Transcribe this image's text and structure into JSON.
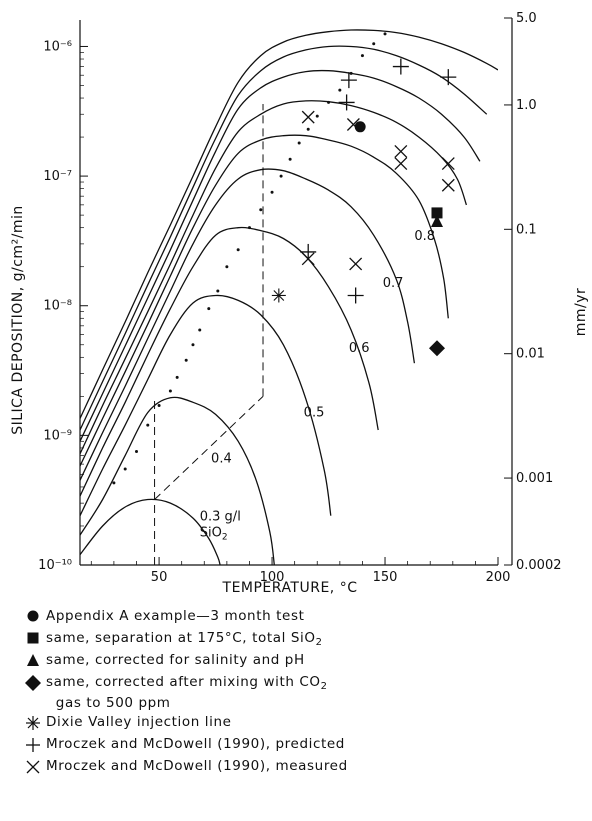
{
  "chart_data": {
    "type": "line",
    "xlabel": "TEMPERATURE, °C",
    "ylabel": "SILICA DEPOSITION, g/cm²/min",
    "y2label": "mm/yr",
    "x_ticks": [
      "50",
      "100",
      "150",
      "200"
    ],
    "xlim": [
      15,
      200
    ],
    "ylim": [
      1e-10,
      1.6e-06
    ],
    "y_scale": "log",
    "y_ticks": [
      {
        "value": 1e-10,
        "label": "10⁻¹⁰"
      },
      {
        "value": 1e-09,
        "label": "10⁻⁹"
      },
      {
        "value": 1e-08,
        "label": "10⁻⁸"
      },
      {
        "value": 1e-07,
        "label": "10⁻⁷"
      },
      {
        "value": 1e-06,
        "label": "10⁻⁶"
      }
    ],
    "y2_ticks": [
      {
        "value": 5.0,
        "label": "5.0"
      },
      {
        "value": 1.0,
        "label": "1.0"
      },
      {
        "value": 0.1,
        "label": "0.1"
      },
      {
        "value": 0.01,
        "label": "0.01"
      },
      {
        "value": 0.001,
        "label": "0.001"
      },
      {
        "value": 0.0002,
        "label": "0.0002"
      }
    ],
    "curves": [
      {
        "label": "0.3 g/l",
        "label2": "SiO₂",
        "label_at": [
          68,
          2.2e-10
        ],
        "points": [
          [
            15,
            1.2e-10
          ],
          [
            25,
            2e-10
          ],
          [
            35,
            2.8e-10
          ],
          [
            45,
            3.2e-10
          ],
          [
            55,
            3e-10
          ],
          [
            65,
            2.3e-10
          ],
          [
            72,
            1.6e-10
          ],
          [
            76,
            1.15e-10
          ],
          [
            77,
            1e-10
          ]
        ]
      },
      {
        "label": "0.4",
        "label_at": [
          73,
          6.2e-10
        ],
        "points": [
          [
            15,
            1.7e-10
          ],
          [
            25,
            3.2e-10
          ],
          [
            35,
            7e-10
          ],
          [
            45,
            1.5e-09
          ],
          [
            55,
            1.95e-09
          ],
          [
            65,
            1.8e-09
          ],
          [
            75,
            1.45e-09
          ],
          [
            85,
            9e-10
          ],
          [
            93,
            4.5e-10
          ],
          [
            99,
            1.8e-10
          ],
          [
            101,
            1e-10
          ]
        ]
      },
      {
        "label": "0.5",
        "label_at": [
          114,
          1.4e-09
        ],
        "points": [
          [
            15,
            2.4e-10
          ],
          [
            25,
            5.5e-10
          ],
          [
            35,
            1.2e-09
          ],
          [
            45,
            2.7e-09
          ],
          [
            55,
            6e-09
          ],
          [
            65,
            1.05e-08
          ],
          [
            75,
            1.2e-08
          ],
          [
            85,
            1.1e-08
          ],
          [
            95,
            8.5e-09
          ],
          [
            105,
            5e-09
          ],
          [
            115,
            1.9e-09
          ],
          [
            123,
            5.5e-10
          ],
          [
            126,
            2.4e-10
          ]
        ]
      },
      {
        "label": "0.6",
        "label_at": [
          134,
          4.4e-09
        ],
        "points": [
          [
            15,
            3.4e-10
          ],
          [
            25,
            8e-10
          ],
          [
            35,
            1.8e-09
          ],
          [
            45,
            4.2e-09
          ],
          [
            55,
            9.5e-09
          ],
          [
            65,
            2e-08
          ],
          [
            75,
            3.5e-08
          ],
          [
            85,
            4e-08
          ],
          [
            95,
            3.8e-08
          ],
          [
            105,
            3.3e-08
          ],
          [
            115,
            2.4e-08
          ],
          [
            125,
            1.4e-08
          ],
          [
            135,
            6.5e-09
          ],
          [
            143,
            2.5e-09
          ],
          [
            147,
            1.1e-09
          ]
        ]
      },
      {
        "label": "0.7",
        "label_at": [
          149,
          1.4e-08
        ],
        "points": [
          [
            15,
            4.5e-10
          ],
          [
            25,
            1.05e-09
          ],
          [
            35,
            2.4e-09
          ],
          [
            45,
            5.6e-09
          ],
          [
            55,
            1.3e-08
          ],
          [
            65,
            3e-08
          ],
          [
            75,
            6e-08
          ],
          [
            85,
            9.5e-08
          ],
          [
            95,
            1.12e-07
          ],
          [
            105,
            1.1e-07
          ],
          [
            115,
            9.5e-08
          ],
          [
            125,
            7.8e-08
          ],
          [
            135,
            5.8e-08
          ],
          [
            145,
            3.5e-08
          ],
          [
            155,
            1.6e-08
          ],
          [
            160,
            7.5e-09
          ],
          [
            163,
            3.6e-09
          ]
        ]
      },
      {
        "label": "0.8",
        "label_at": [
          163,
          3.2e-08
        ],
        "points": [
          [
            15,
            5.8e-10
          ],
          [
            25,
            1.35e-09
          ],
          [
            35,
            3.1e-09
          ],
          [
            45,
            7.2e-09
          ],
          [
            55,
            1.7e-08
          ],
          [
            65,
            4e-08
          ],
          [
            75,
            8.5e-08
          ],
          [
            85,
            1.5e-07
          ],
          [
            95,
            1.9e-07
          ],
          [
            105,
            2.05e-07
          ],
          [
            115,
            2.05e-07
          ],
          [
            125,
            1.9e-07
          ],
          [
            135,
            1.7e-07
          ],
          [
            145,
            1.4e-07
          ],
          [
            155,
            1.05e-07
          ],
          [
            165,
            6.5e-08
          ],
          [
            172,
            3.2e-08
          ],
          [
            176,
            1.6e-08
          ],
          [
            178,
            8e-09
          ]
        ]
      },
      {
        "label": "",
        "points": [
          [
            15,
            7.2e-10
          ],
          [
            25,
            1.7e-09
          ],
          [
            35,
            3.9e-09
          ],
          [
            45,
            9e-09
          ],
          [
            55,
            2.1e-08
          ],
          [
            65,
            5e-08
          ],
          [
            75,
            1.15e-07
          ],
          [
            85,
            2.2e-07
          ],
          [
            95,
            3e-07
          ],
          [
            105,
            3.6e-07
          ],
          [
            115,
            3.8e-07
          ],
          [
            125,
            3.75e-07
          ],
          [
            135,
            3.5e-07
          ],
          [
            145,
            3.1e-07
          ],
          [
            155,
            2.6e-07
          ],
          [
            165,
            2e-07
          ],
          [
            175,
            1.4e-07
          ],
          [
            182,
            9.5e-08
          ],
          [
            186,
            6e-08
          ]
        ]
      },
      {
        "label": "",
        "points": [
          [
            15,
            9e-10
          ],
          [
            25,
            2.1e-09
          ],
          [
            35,
            4.9e-09
          ],
          [
            45,
            1.15e-08
          ],
          [
            55,
            2.7e-08
          ],
          [
            65,
            6.5e-08
          ],
          [
            75,
            1.55e-07
          ],
          [
            85,
            3.3e-07
          ],
          [
            95,
            4.8e-07
          ],
          [
            105,
            5.8e-07
          ],
          [
            115,
            6.4e-07
          ],
          [
            125,
            6.5e-07
          ],
          [
            135,
            6.2e-07
          ],
          [
            145,
            5.7e-07
          ],
          [
            155,
            4.9e-07
          ],
          [
            165,
            4e-07
          ],
          [
            175,
            3e-07
          ],
          [
            185,
            2e-07
          ],
          [
            192,
            1.3e-07
          ]
        ]
      },
      {
        "label": "",
        "points": [
          [
            15,
            1.1e-09
          ],
          [
            25,
            2.6e-09
          ],
          [
            35,
            6.1e-09
          ],
          [
            45,
            1.45e-08
          ],
          [
            55,
            3.4e-08
          ],
          [
            65,
            8.2e-08
          ],
          [
            75,
            1.95e-07
          ],
          [
            85,
            4.2e-07
          ],
          [
            95,
            6.5e-07
          ],
          [
            105,
            8.3e-07
          ],
          [
            115,
            9.4e-07
          ],
          [
            125,
            1e-06
          ],
          [
            135,
            1e-06
          ],
          [
            145,
            9.5e-07
          ],
          [
            155,
            8.5e-07
          ],
          [
            165,
            7.2e-07
          ],
          [
            175,
            5.8e-07
          ],
          [
            185,
            4.3e-07
          ],
          [
            195,
            3e-07
          ]
        ]
      },
      {
        "label": "",
        "points": [
          [
            15,
            1.35e-09
          ],
          [
            25,
            3.2e-09
          ],
          [
            35,
            7.5e-09
          ],
          [
            45,
            1.8e-08
          ],
          [
            55,
            4.2e-08
          ],
          [
            65,
            1e-07
          ],
          [
            75,
            2.4e-07
          ],
          [
            85,
            5.3e-07
          ],
          [
            95,
            8.5e-07
          ],
          [
            105,
            1.08e-06
          ],
          [
            115,
            1.22e-06
          ],
          [
            125,
            1.3e-06
          ],
          [
            135,
            1.34e-06
          ],
          [
            145,
            1.33e-06
          ],
          [
            155,
            1.28e-06
          ],
          [
            165,
            1.18e-06
          ],
          [
            175,
            1.05e-06
          ],
          [
            185,
            9e-07
          ],
          [
            195,
            7.4e-07
          ],
          [
            200,
            6.6e-07
          ]
        ]
      }
    ],
    "dotted_line": [
      [
        30,
        4.3e-10
      ],
      [
        35,
        5.5e-10
      ],
      [
        40,
        7.5e-10
      ],
      [
        45,
        1.2e-09
      ],
      [
        50,
        1.7e-09
      ],
      [
        55,
        2.2e-09
      ],
      [
        58,
        2.8e-09
      ],
      [
        62,
        3.8e-09
      ],
      [
        65,
        5e-09
      ],
      [
        68,
        6.5e-09
      ],
      [
        72,
        9.5e-09
      ],
      [
        76,
        1.3e-08
      ],
      [
        80,
        2e-08
      ],
      [
        85,
        2.7e-08
      ],
      [
        90,
        4e-08
      ],
      [
        95,
        5.5e-08
      ],
      [
        100,
        7.5e-08
      ],
      [
        104,
        1e-07
      ],
      [
        108,
        1.35e-07
      ],
      [
        112,
        1.8e-07
      ],
      [
        116,
        2.3e-07
      ],
      [
        120,
        2.9e-07
      ],
      [
        125,
        3.7e-07
      ],
      [
        130,
        4.6e-07
      ],
      [
        135,
        6.2e-07
      ],
      [
        140,
        8.5e-07
      ],
      [
        145,
        1.05e-06
      ],
      [
        150,
        1.25e-06
      ]
    ],
    "dashed_line": [
      [
        48,
        2e-10
      ],
      [
        48,
        2e-09
      ],
      [
        48,
        1e-10
      ],
      [
        48,
        2e-10
      ],
      [
        96,
        2e-09
      ],
      [
        96,
        3.6e-07
      ],
      [
        100,
        1e-10
      ],
      [
        100,
        1e-08
      ]
    ],
    "markers": {
      "appendix_a": [
        [
          139,
          2.4e-07
        ]
      ],
      "separation": [
        [
          173,
          5.2e-08
        ]
      ],
      "corrected_salinity": [
        [
          173,
          4.5e-08
        ]
      ],
      "corrected_co2": [
        [
          173,
          4.7e-09
        ]
      ],
      "dixie_valley": [
        [
          103,
          1.2e-08
        ]
      ],
      "predicted": [
        [
          116,
          2.6e-08
        ],
        [
          137,
          1.2e-08
        ],
        [
          134,
          5.5e-07
        ],
        [
          157,
          7e-07
        ],
        [
          178,
          5.8e-07
        ],
        [
          133,
          3.7e-07
        ]
      ],
      "measured": [
        [
          116,
          2.85e-07
        ],
        [
          116,
          2.3e-08
        ],
        [
          137,
          2.1e-08
        ],
        [
          136,
          2.5e-07
        ],
        [
          157,
          1.55e-07
        ],
        [
          157,
          1.25e-07
        ],
        [
          178,
          1.25e-07
        ],
        [
          178,
          8.5e-08
        ]
      ]
    },
    "legend": [
      {
        "symbol": "circle",
        "text": "Appendix A example—3 month test"
      },
      {
        "symbol": "square",
        "text": "same, separation at 175°C, total SiO",
        "sub": "2"
      },
      {
        "symbol": "triangle",
        "text": "same, corrected for salinity and pH"
      },
      {
        "symbol": "diamond",
        "text": "same, corrected after mixing with CO",
        "sub": "2",
        "text2": "gas to 500 ppm"
      },
      {
        "symbol": "asterisk",
        "text": "Dixie Valley injection line"
      },
      {
        "symbol": "plus",
        "text": "Mroczek and McDowell (1990), predicted"
      },
      {
        "symbol": "cross",
        "text": "Mroczek and McDowell (1990), measured"
      }
    ]
  }
}
